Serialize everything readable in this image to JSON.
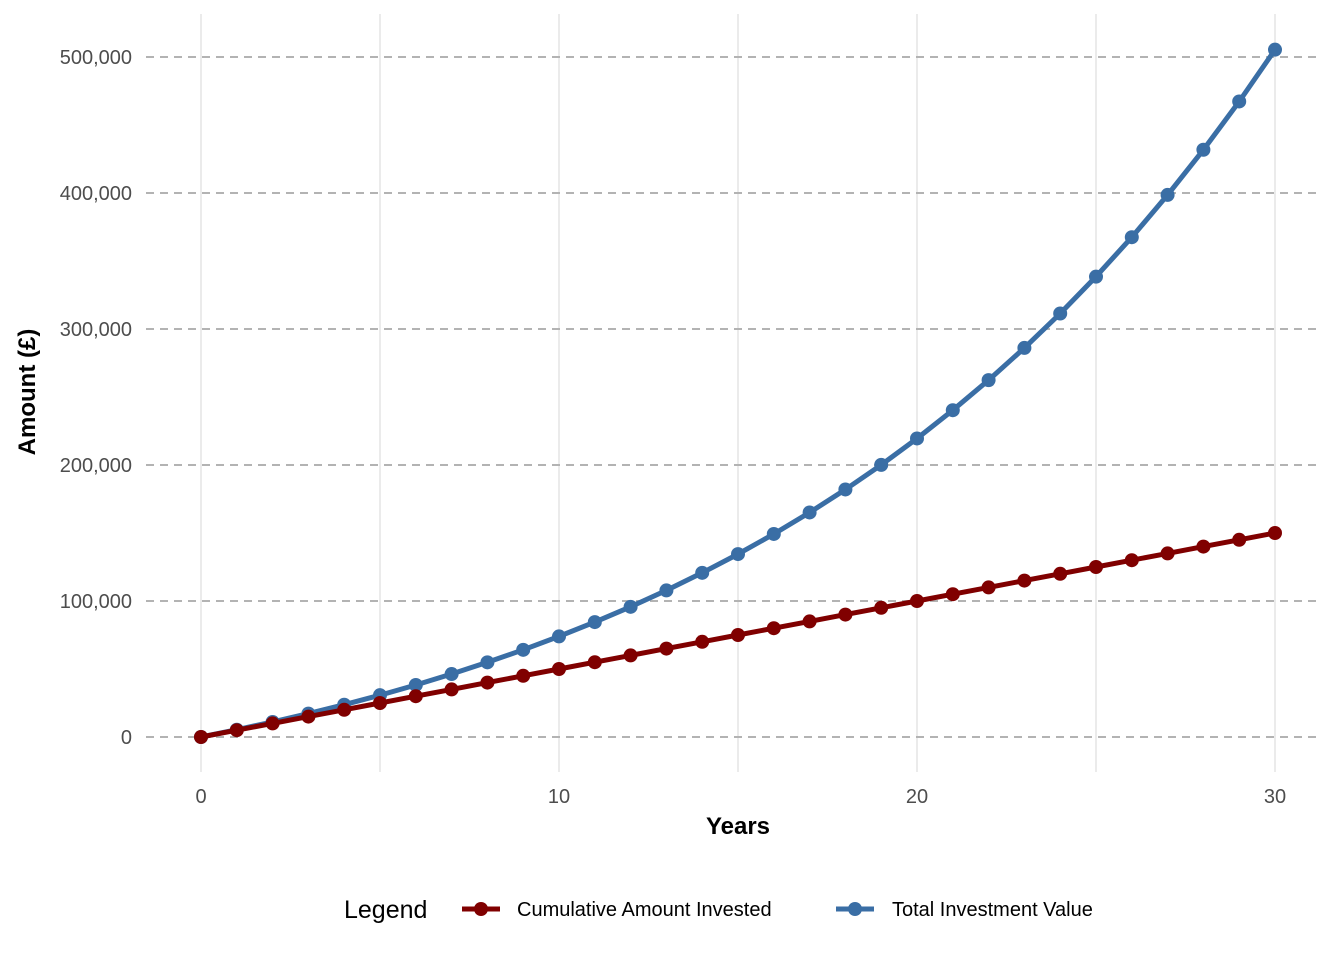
{
  "chart_data": {
    "type": "line",
    "title": "",
    "xlabel": "Years",
    "ylabel": "Amount (£)",
    "xlim": [
      0,
      30
    ],
    "ylim": [
      0,
      505000
    ],
    "x_ticks": [
      0,
      10,
      20,
      30
    ],
    "x_tick_labels": [
      "0",
      "10",
      "20",
      "30"
    ],
    "y_ticks": [
      0,
      100000,
      200000,
      300000,
      400000,
      500000
    ],
    "y_tick_labels": [
      "0",
      "100,000",
      "200,000",
      "300,000",
      "400,000",
      "500,000"
    ],
    "grid": {
      "vertical": true,
      "horizontal_dashed": true
    },
    "legend": {
      "title": "Legend",
      "position": "bottom",
      "entries": [
        {
          "label": "Cumulative Amount Invested",
          "color": "#800000"
        },
        {
          "label": "Total Investment Value",
          "color": "#3a6ea5"
        }
      ]
    },
    "x": [
      0,
      1,
      2,
      3,
      4,
      5,
      6,
      7,
      8,
      9,
      10,
      11,
      12,
      13,
      14,
      15,
      16,
      17,
      18,
      19,
      20,
      21,
      22,
      23,
      24,
      25,
      26,
      27,
      28,
      29,
      30
    ],
    "series": [
      {
        "name": "Total Investment Value",
        "color": "#3a6ea5",
        "values": [
          0,
          5350,
          11075,
          17200,
          23750,
          30750,
          38250,
          46300,
          54900,
          64100,
          73950,
          84500,
          95700,
          107800,
          120700,
          134500,
          149300,
          165100,
          182000,
          200100,
          219500,
          240300,
          262400,
          286100,
          311400,
          338500,
          367500,
          398600,
          431800,
          467300,
          505400
        ]
      },
      {
        "name": "Cumulative Amount Invested",
        "color": "#800000",
        "values": [
          0,
          5000,
          10000,
          15000,
          20000,
          25000,
          30000,
          35000,
          40000,
          45000,
          50000,
          55000,
          60000,
          65000,
          70000,
          75000,
          80000,
          85000,
          90000,
          95000,
          100000,
          105000,
          110000,
          115000,
          120000,
          125000,
          130000,
          135000,
          140000,
          145000,
          150000
        ]
      }
    ]
  }
}
